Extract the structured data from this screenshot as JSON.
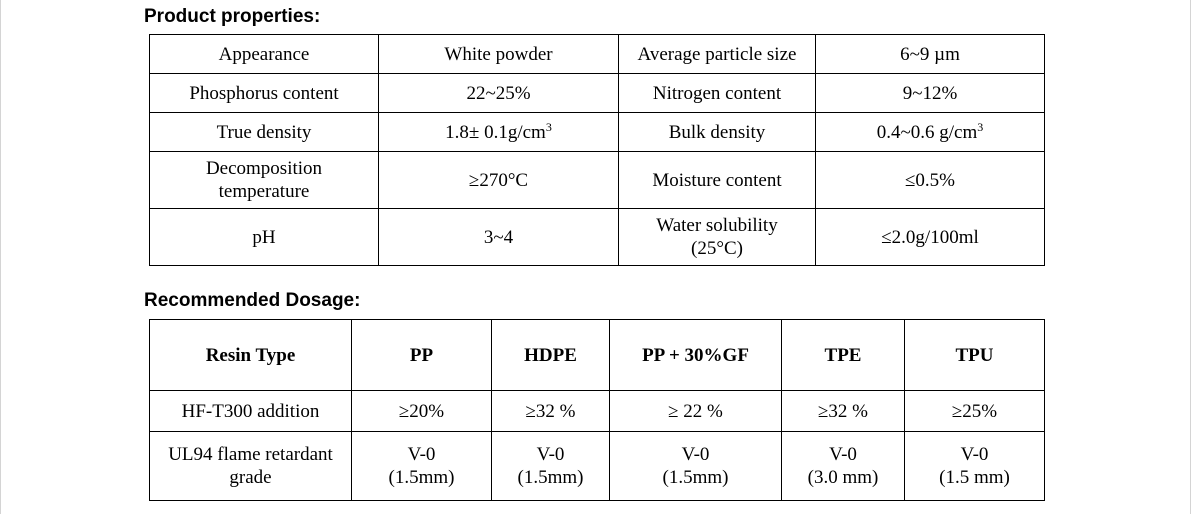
{
  "product_properties": {
    "heading": "Product properties:",
    "rows": [
      {
        "label_a": "Appearance",
        "value_a": "White powder",
        "label_b": "Average particle size",
        "value_b": "6~9 µm"
      },
      {
        "label_a": "Phosphorus content",
        "value_a": "22~25%",
        "label_b": "Nitrogen content",
        "value_b": "9~12%"
      },
      {
        "label_a": "True density",
        "value_a": "1.8± 0.1g/cm",
        "label_b": "Bulk density",
        "value_b": "0.4~0.6 g/cm"
      },
      {
        "label_a_line1": "Decomposition",
        "label_a_line2": "temperature",
        "value_a": "≥270°C",
        "label_b": "Moisture content",
        "value_b": "≤0.5%"
      },
      {
        "label_a": "pH",
        "value_a": "3~4",
        "label_b_line1": "Water solubility",
        "label_b_line2": "(25°C)",
        "value_b": "≤2.0g/100ml"
      }
    ],
    "superscript": "3"
  },
  "recommended_dosage": {
    "heading": "Recommended Dosage:",
    "header": [
      "Resin Type",
      "PP",
      "HDPE",
      "PP + 30%GF",
      "TPE",
      "TPU"
    ],
    "addition_row": {
      "label": "HF-T300 addition",
      "values": [
        "≥20%",
        "≥32 %",
        "≥ 22 %",
        "≥32 %",
        "≥25%"
      ]
    },
    "ul94_row": {
      "label_line1": "UL94 flame retardant",
      "label_line2": "grade",
      "grades": [
        "V-0",
        "V-0",
        "V-0",
        "V-0",
        "V-0"
      ],
      "thickness": [
        "(1.5mm)",
        "(1.5mm)",
        "(1.5mm)",
        "(3.0 mm)",
        "(1.5 mm)"
      ]
    }
  }
}
